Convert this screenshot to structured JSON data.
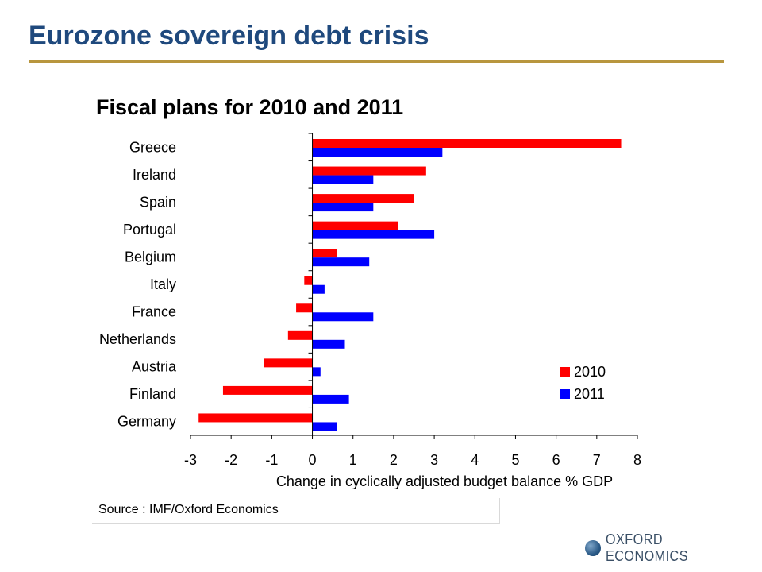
{
  "slide": {
    "title": "Eurozone sovereign debt crisis",
    "source": "Source : IMF/Oxford Economics",
    "logo": "OXFORD ECONOMICS",
    "logo_icon": "globe-icon",
    "accent_color": "#1f497d",
    "rule_color": "#b8963e"
  },
  "chart_data": {
    "type": "bar",
    "orientation": "horizontal",
    "title": "Fiscal plans for 2010 and 2011",
    "xlabel": "Change in cyclically adjusted budget balance % GDP",
    "ylabel": "",
    "categories": [
      "Greece",
      "Ireland",
      "Spain",
      "Portugal",
      "Belgium",
      "Italy",
      "France",
      "Netherlands",
      "Austria",
      "Finland",
      "Germany"
    ],
    "series": [
      {
        "name": "2010",
        "color": "#ff0000",
        "values": [
          7.6,
          2.8,
          2.5,
          2.1,
          0.6,
          -0.2,
          -0.4,
          -0.6,
          -1.2,
          -2.2,
          -2.8
        ]
      },
      {
        "name": "2011",
        "color": "#0000ff",
        "values": [
          3.2,
          1.5,
          1.5,
          3.0,
          1.4,
          0.3,
          1.5,
          0.8,
          0.2,
          0.9,
          0.6
        ]
      }
    ],
    "xlim": [
      -3,
      8
    ],
    "xticks": [
      "-3",
      "-2",
      "-1",
      "0",
      "1",
      "2",
      "3",
      "4",
      "5",
      "6",
      "7",
      "8"
    ],
    "grid": false,
    "legend_position": "bottom-right"
  }
}
